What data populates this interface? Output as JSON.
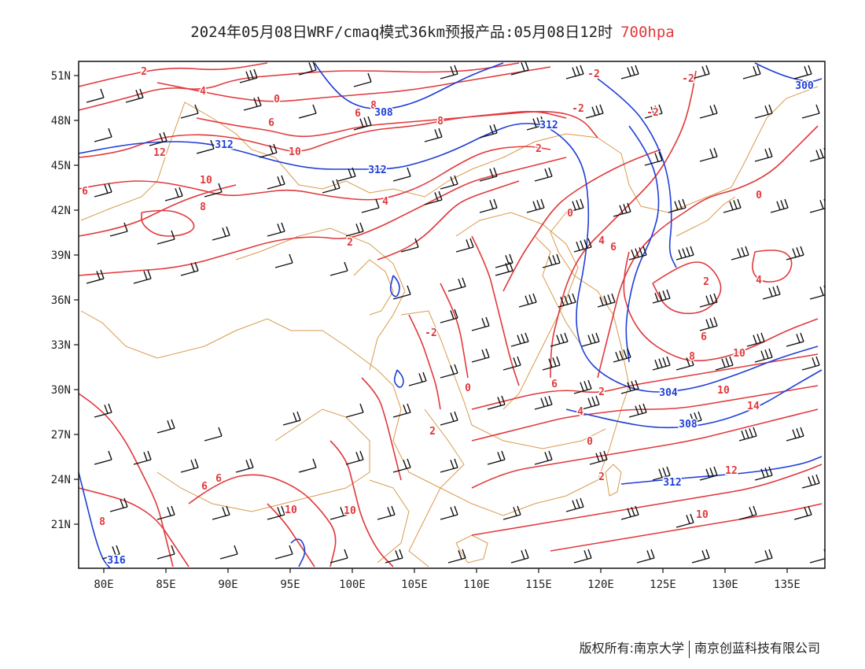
{
  "title": {
    "text": "2024年05月08日WRF/cmaq模式36km预报产品:05月08日12时",
    "level": "700hpa"
  },
  "axes": {
    "lat_labels": [
      "51N",
      "48N",
      "45N",
      "42N",
      "39N",
      "36N",
      "33N",
      "30N",
      "27N",
      "24N",
      "21N"
    ],
    "lon_labels": [
      "80E",
      "85E",
      "90E",
      "95E",
      "100E",
      "105E",
      "110E",
      "115E",
      "120E",
      "125E",
      "130E",
      "135E"
    ]
  },
  "colors": {
    "temperature": "#e0393c",
    "height": "#1f3fd6",
    "boundary": "#d99a4a",
    "barb": "#111111"
  },
  "temperature_labels": [
    "2",
    "4",
    "0",
    "8",
    "6",
    "6",
    "8",
    "10",
    "12",
    "2",
    "10",
    "8",
    "6",
    "4",
    "2",
    "0",
    "-2",
    "-2",
    "-2",
    "-2",
    "0",
    "2",
    "4",
    "6",
    "8",
    "10",
    "10",
    "14",
    "12",
    "10",
    "4",
    "6",
    "6",
    "4",
    "2",
    "0",
    "2",
    "-2",
    "0",
    "2",
    "6",
    "6",
    "8",
    "10",
    "10"
  ],
  "height_labels": [
    "300",
    "308",
    "312",
    "312",
    "312",
    "304",
    "308",
    "312",
    "316"
  ],
  "footer": {
    "left": "版权所有:南京大学",
    "right": "南京创蓝科技有限公司"
  }
}
